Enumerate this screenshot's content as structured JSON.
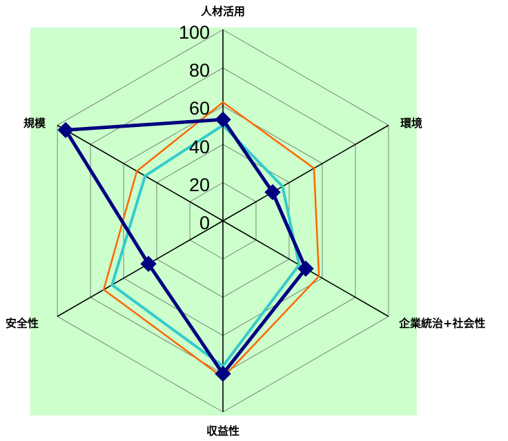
{
  "chart_data": {
    "type": "radar",
    "axes": [
      "人材活用",
      "環境",
      "企業統治+社会性",
      "収益性",
      "安全性",
      "規模"
    ],
    "r_range": [
      0,
      100
    ],
    "r_ticks": [
      "0",
      "20",
      "40",
      "60",
      "80",
      "100"
    ],
    "grid": true,
    "legend": "none",
    "background_color": "#ccffcc",
    "series": [
      {
        "color": "#ff6600",
        "values": [
          62,
          55,
          58,
          82,
          72,
          52
        ]
      },
      {
        "color": "#33cccc",
        "values": [
          50,
          36,
          46,
          76,
          67,
          47
        ]
      },
      {
        "color": "#000080",
        "values": [
          53,
          30,
          50,
          80,
          45,
          95
        ]
      }
    ]
  }
}
